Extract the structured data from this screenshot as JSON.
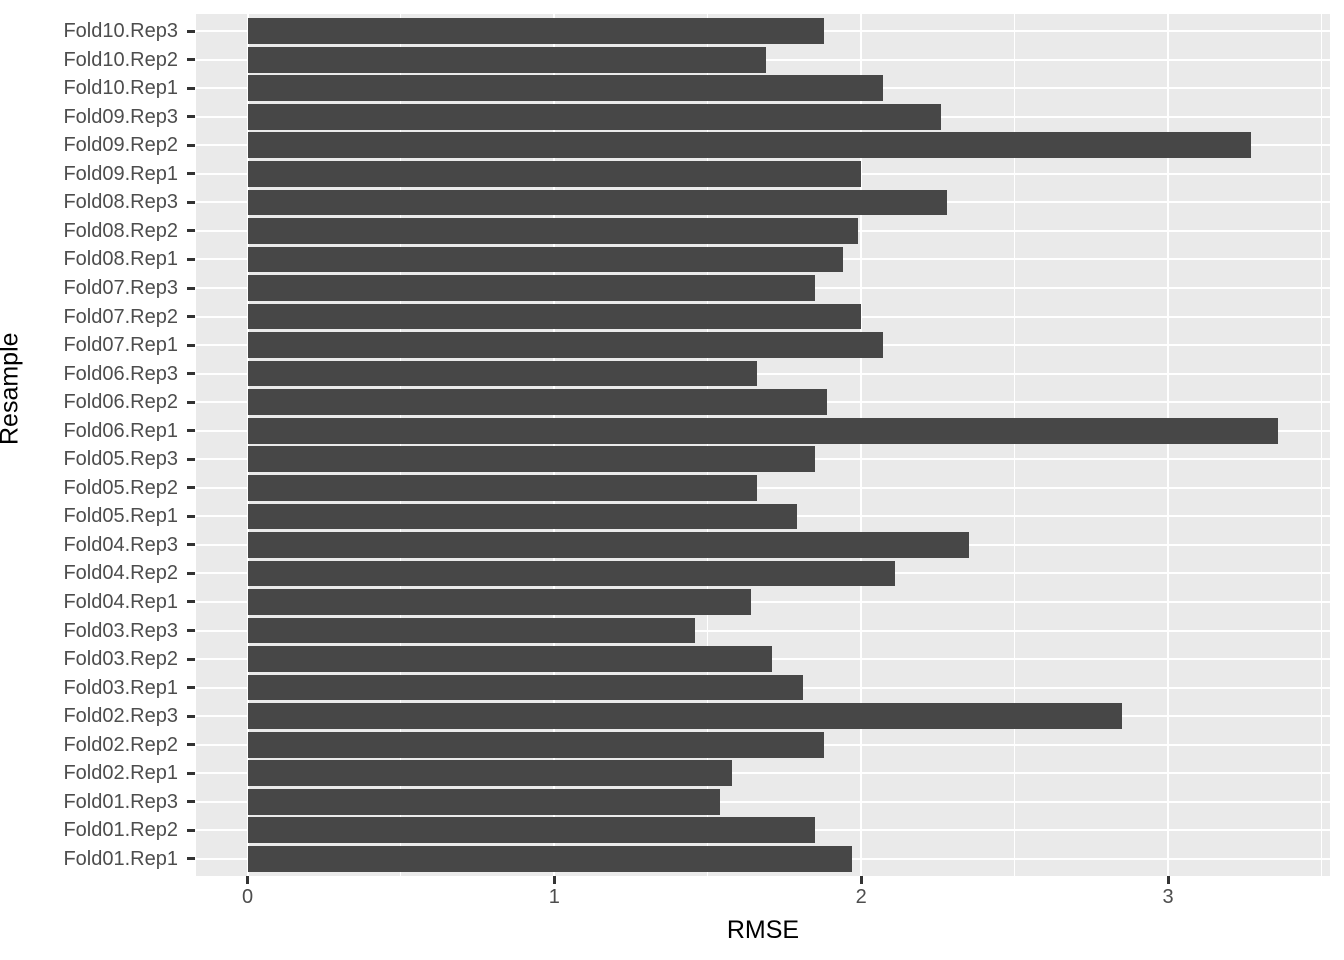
{
  "chart_data": {
    "type": "bar",
    "orientation": "horizontal",
    "title": "",
    "xlabel": "RMSE",
    "ylabel": "Resample",
    "categories": [
      "Fold10.Rep3",
      "Fold10.Rep2",
      "Fold10.Rep1",
      "Fold09.Rep3",
      "Fold09.Rep2",
      "Fold09.Rep1",
      "Fold08.Rep3",
      "Fold08.Rep2",
      "Fold08.Rep1",
      "Fold07.Rep3",
      "Fold07.Rep2",
      "Fold07.Rep1",
      "Fold06.Rep3",
      "Fold06.Rep2",
      "Fold06.Rep1",
      "Fold05.Rep3",
      "Fold05.Rep2",
      "Fold05.Rep1",
      "Fold04.Rep3",
      "Fold04.Rep2",
      "Fold04.Rep1",
      "Fold03.Rep3",
      "Fold03.Rep2",
      "Fold03.Rep1",
      "Fold02.Rep3",
      "Fold02.Rep2",
      "Fold02.Rep1",
      "Fold01.Rep3",
      "Fold01.Rep2",
      "Fold01.Rep1"
    ],
    "categories_order_note": "top to bottom as displayed",
    "values": [
      1.88,
      1.69,
      2.07,
      2.26,
      3.27,
      2.0,
      2.28,
      1.99,
      1.94,
      1.85,
      2.0,
      2.07,
      1.66,
      1.89,
      3.36,
      1.85,
      1.66,
      1.79,
      2.35,
      2.11,
      1.64,
      1.46,
      1.71,
      1.81,
      2.85,
      1.88,
      1.58,
      1.54,
      1.85,
      1.97
    ],
    "x_axis": {
      "tick_values": [
        0,
        1,
        2,
        3
      ],
      "tick_labels": [
        "0",
        "1",
        "2",
        "3"
      ],
      "minor_gridlines": [
        0.5,
        1.5,
        2.5,
        3.5
      ],
      "range": [
        -0.168,
        3.528
      ]
    },
    "legend": "none",
    "grid": "on",
    "colors": {
      "bar_fill": "#474747",
      "panel_background": "#EAEAEA",
      "gridline": "#FFFFFF",
      "tick_mark": "#333333",
      "axis_text": "#4D4D4D",
      "axis_title": "#000000",
      "page_background": "#FFFFFF"
    }
  }
}
